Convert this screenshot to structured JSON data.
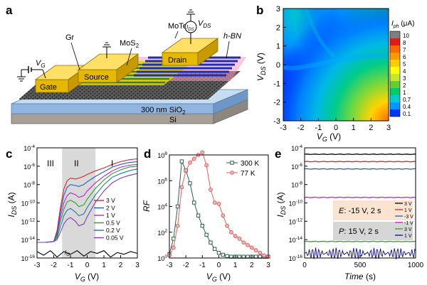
{
  "panels": {
    "a": {
      "letter": "a",
      "labels": {
        "gr": "Gr",
        "gate": "Gate",
        "source": "Source",
        "drain": "Drain",
        "mos2": "MoS",
        "mos2_sub": "2",
        "mote2": "MoTe",
        "mote2_sub": "2",
        "hbn": "h-BN",
        "vg": "V",
        "vg_sub": "G",
        "vds": "V",
        "vds_sub": "DS",
        "ids": "I",
        "ids_sub": "DS",
        "sio2": "300 nm SiO",
        "sio2_sub": "2",
        "si": "Si"
      }
    },
    "b": {
      "letter": "b",
      "xlabel": "V",
      "xlabel_sub": "G",
      "xlabel_unit": " (V)",
      "ylabel": "V",
      "ylabel_sub": "DS",
      "ylabel_unit": " (V)",
      "cbar_title": "I",
      "cbar_title_sub": "ph",
      "cbar_title_unit": " (μA)"
    },
    "c": {
      "letter": "c",
      "xlabel": "V",
      "xlabel_sub": "G",
      "xlabel_unit": " (V)",
      "ylabel": "I",
      "ylabel_sub": "DS",
      "ylabel_unit": " (A)",
      "regions": [
        "III",
        "II",
        "I"
      ],
      "ig_label": "I",
      "ig_label_sub": "G"
    },
    "d": {
      "letter": "d",
      "xlabel": "V",
      "xlabel_sub": "G",
      "xlabel_unit": " (V)",
      "ylabel": "RF"
    },
    "e": {
      "letter": "e",
      "xlabel": "Time",
      "xlabel_unit": " (s)",
      "ylabel": "I",
      "ylabel_sub": "DS",
      "ylabel_unit": " (A)",
      "annot_e": "E",
      "annot_e_rest": ": -15 V, 2 s",
      "annot_p": "P",
      "annot_p_rest": ": 15 V, 2 s"
    }
  },
  "chart_data": [
    {
      "panel": "b",
      "type": "heatmap",
      "x_range": [
        -3,
        3
      ],
      "y_range": [
        -3,
        3
      ],
      "xticks": [
        -3,
        -2,
        -1,
        0,
        1,
        2,
        3
      ],
      "yticks": [
        -3,
        -2,
        -1,
        0,
        1,
        2,
        3
      ],
      "colorbar_ticks": [
        "10",
        "8",
        "7",
        "6",
        "5",
        "4",
        "3",
        "2",
        "1",
        "0.7",
        "0.4",
        "0.1"
      ],
      "colorbar_colors": [
        "#7f7f7f",
        "#e31a1c",
        "#ff6600",
        "#ff9900",
        "#ffcc00",
        "#ffff00",
        "#c6e82a",
        "#66cc33",
        "#00cc66",
        "#00cccc",
        "#0099ff",
        "#0033ff"
      ]
    },
    {
      "panel": "c",
      "type": "line",
      "x_range": [
        -3,
        3
      ],
      "xticks": [
        -3,
        -2,
        -1,
        0,
        1,
        2,
        3
      ],
      "yticks": [
        "10^-4",
        "10^-6",
        "10^-8",
        "10^-10",
        "10^-12",
        "10^-14",
        "10^-16"
      ],
      "y_log_range": [
        -16,
        -4
      ],
      "shaded_region": [
        -1.5,
        0.5
      ],
      "series": [
        {
          "name": "3 V",
          "color": "#d62728",
          "x": [
            -3,
            -2.5,
            -2,
            -1.8,
            -1.6,
            -1.4,
            -1.2,
            -1,
            -0.7,
            -0.5,
            -0.2,
            0,
            0.5,
            1,
            1.5,
            2,
            2.5,
            3
          ],
          "logy": [
            -14.3,
            -14.3,
            -14.2,
            -13,
            -10.5,
            -8.5,
            -7.6,
            -7.3,
            -7.4,
            -7.3,
            -7.1,
            -6.9,
            -6.5,
            -6.2,
            -5.8,
            -5.5,
            -5.3,
            -5.2
          ]
        },
        {
          "name": "2 V",
          "color": "#1f5fbf",
          "x": [
            -3,
            -2.5,
            -2,
            -1.8,
            -1.6,
            -1.4,
            -1.2,
            -1,
            -0.7,
            -0.5,
            -0.2,
            0,
            0.5,
            1,
            1.5,
            2,
            2.5,
            3
          ],
          "logy": [
            -14.3,
            -14.3,
            -14.2,
            -13.2,
            -11,
            -9.2,
            -8.3,
            -8,
            -8.1,
            -8.2,
            -8,
            -7.7,
            -7.1,
            -6.6,
            -6.1,
            -5.8,
            -5.6,
            -5.5
          ]
        },
        {
          "name": "1 V",
          "color": "#c71fd1",
          "x": [
            -3,
            -2.5,
            -2,
            -1.8,
            -1.6,
            -1.4,
            -1.2,
            -1,
            -0.7,
            -0.5,
            -0.2,
            0,
            0.5,
            1,
            1.5,
            2,
            2.5,
            3
          ],
          "logy": [
            -14.3,
            -14.3,
            -14.2,
            -13.4,
            -11.5,
            -10,
            -9.2,
            -8.9,
            -9.1,
            -9.4,
            -9.2,
            -8.7,
            -7.8,
            -7.1,
            -6.5,
            -6.1,
            -5.9,
            -5.8
          ]
        },
        {
          "name": "0.5 V",
          "color": "#2ca02c",
          "x": [
            -3,
            -2.5,
            -2,
            -1.8,
            -1.6,
            -1.4,
            -1.2,
            -1,
            -0.7,
            -0.5,
            -0.2,
            0,
            0.5,
            1,
            1.5,
            2,
            2.5,
            3
          ],
          "logy": [
            -14.3,
            -14.3,
            -14.2,
            -13.6,
            -12,
            -10.7,
            -9.9,
            -9.7,
            -10,
            -10.4,
            -10.2,
            -9.6,
            -8.4,
            -7.5,
            -6.8,
            -6.4,
            -6.1,
            -6
          ]
        },
        {
          "name": "0.2 V",
          "color": "#1f77b4",
          "x": [
            -3,
            -2.5,
            -2,
            -1.8,
            -1.6,
            -1.4,
            -1.2,
            -1,
            -0.7,
            -0.5,
            -0.2,
            0,
            0.5,
            1,
            1.5,
            2,
            2.5,
            3
          ],
          "logy": [
            -14.3,
            -14.3,
            -14.2,
            -13.8,
            -12.6,
            -11.4,
            -10.8,
            -10.6,
            -11,
            -11.4,
            -11.2,
            -10.5,
            -9.1,
            -8,
            -7.2,
            -6.8,
            -6.5,
            -6.3
          ]
        },
        {
          "name": "0.05 V",
          "color": "#7b3fb2",
          "x": [
            -3,
            -2.5,
            -2,
            -1.8,
            -1.6,
            -1.4,
            -1.2,
            -1,
            -0.7,
            -0.5,
            -0.2,
            0,
            0.5,
            1,
            1.5,
            2,
            2.5,
            3
          ],
          "logy": [
            -14.3,
            -14.3,
            -14.2,
            -14,
            -13.2,
            -12.3,
            -11.8,
            -11.6,
            -12,
            -12.5,
            -12.3,
            -11.5,
            -9.9,
            -8.7,
            -7.8,
            -7.3,
            -7,
            -6.8
          ]
        },
        {
          "name": "",
          "color": "#000000",
          "x": [
            -3,
            -2.6,
            -2.2,
            -1.8,
            -1.4,
            -1,
            -0.6,
            -0.2,
            0.2,
            0.6,
            1,
            1.4,
            1.8,
            2.2,
            2.6,
            3
          ],
          "logy": [
            -15.3,
            -15.7,
            -15.2,
            -15.9,
            -15.3,
            -15.6,
            -15.2,
            -15.8,
            -15.3,
            -15.5,
            -15.2,
            -15.9,
            -15.4,
            -15.6,
            -15.3,
            -15.5
          ]
        }
      ]
    },
    {
      "panel": "d",
      "type": "line",
      "x_range": [
        -3,
        3
      ],
      "xticks": [
        -3,
        -2,
        -1,
        0,
        1,
        2,
        3
      ],
      "yticks": [
        "10^8",
        "10^6",
        "10^4",
        "10^2",
        "10^0"
      ],
      "y_log_range": [
        0,
        8
      ],
      "series": [
        {
          "name": "300 K",
          "color": "#2f5f4f",
          "marker": "square",
          "x": [
            -3,
            -2.75,
            -2.5,
            -2.25,
            -2,
            -1.75,
            -1.5,
            -1.25,
            -1,
            -0.75,
            -0.5,
            -0.25,
            0,
            0.25,
            0.5,
            0.75,
            1,
            1.25,
            1.5,
            1.75,
            2,
            2.25,
            2.5,
            2.75,
            3
          ],
          "logy": [
            0.3,
            1.5,
            4,
            7.5,
            6.8,
            5.8,
            4.3,
            3.3,
            2.5,
            1.8,
            1.2,
            0.7,
            0.4,
            0.25,
            0.15,
            0.1,
            0.1,
            0.1,
            0.1,
            0.1,
            0.1,
            0.1,
            0.1,
            0.1,
            0.1
          ]
        },
        {
          "name": "77 K",
          "color": "#e06060",
          "marker": "circle",
          "x": [
            -3,
            -2.75,
            -2.5,
            -2.25,
            -2,
            -1.75,
            -1.5,
            -1.25,
            -1,
            -0.75,
            -0.5,
            -0.25,
            0,
            0.25,
            0.5,
            0.75,
            1,
            1.25,
            1.5,
            1.75,
            2,
            2.25,
            2.5,
            2.75,
            3
          ],
          "logy": [
            0.2,
            0.8,
            2.5,
            5.5,
            6.8,
            7.4,
            7.7,
            8,
            8.2,
            7.2,
            5.3,
            4.3,
            4.2,
            3.3,
            2.5,
            2,
            1.7,
            1.5,
            1.2,
            1,
            0.8,
            0.6,
            0.4,
            0.2,
            0.1
          ]
        }
      ]
    },
    {
      "panel": "e",
      "type": "line",
      "x_range": [
        0,
        1000
      ],
      "xticks": [
        0,
        500,
        1000
      ],
      "yticks": [
        "10^-4",
        "10^-6",
        "10^-8",
        "10^-10",
        "10^-12",
        "10^-14",
        "10^-16"
      ],
      "y_log_range": [
        -16,
        -4
      ],
      "series": [
        {
          "name": "3 V",
          "color": "#000000",
          "logy": -4.7
        },
        {
          "name": "1 V",
          "color": "#d62728",
          "logy": -5.5
        },
        {
          "name": "-3 V",
          "color": "#1f5fbf",
          "logy": -6.3
        },
        {
          "name": "-1 V",
          "color": "#c71fd1",
          "logy": -9.4
        },
        {
          "name": "3 V",
          "color": "#2ca02c",
          "logy": -14.2
        },
        {
          "name": "1 V",
          "color": "#0a0a8c",
          "logy": -15.5
        }
      ]
    }
  ]
}
